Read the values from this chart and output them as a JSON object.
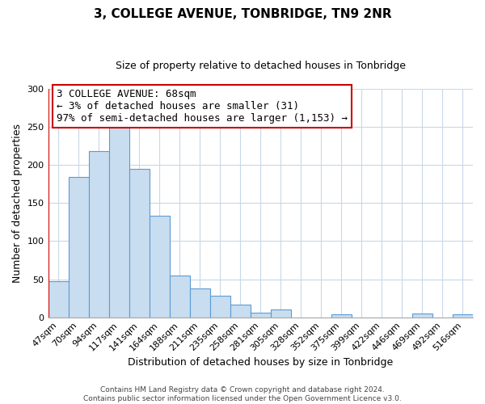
{
  "title": "3, COLLEGE AVENUE, TONBRIDGE, TN9 2NR",
  "subtitle": "Size of property relative to detached houses in Tonbridge",
  "xlabel": "Distribution of detached houses by size in Tonbridge",
  "ylabel": "Number of detached properties",
  "bar_labels": [
    "47sqm",
    "70sqm",
    "94sqm",
    "117sqm",
    "141sqm",
    "164sqm",
    "188sqm",
    "211sqm",
    "235sqm",
    "258sqm",
    "281sqm",
    "305sqm",
    "328sqm",
    "352sqm",
    "375sqm",
    "399sqm",
    "422sqm",
    "446sqm",
    "469sqm",
    "492sqm",
    "516sqm"
  ],
  "bar_heights": [
    47,
    184,
    218,
    250,
    195,
    133,
    55,
    38,
    28,
    17,
    6,
    10,
    0,
    0,
    4,
    0,
    0,
    0,
    5,
    0,
    4
  ],
  "bar_color": "#c8ddef",
  "bar_edge_color": "#5b9bd5",
  "highlight_line_color": "#cc0000",
  "ylim": [
    0,
    300
  ],
  "yticks": [
    0,
    50,
    100,
    150,
    200,
    250,
    300
  ],
  "annotation_line1": "3 COLLEGE AVENUE: 68sqm",
  "annotation_line2": "← 3% of detached houses are smaller (31)",
  "annotation_line3": "97% of semi-detached houses are larger (1,153) →",
  "annotation_box_color": "#ffffff",
  "annotation_box_edge_color": "#cc0000",
  "footer_line1": "Contains HM Land Registry data © Crown copyright and database right 2024.",
  "footer_line2": "Contains public sector information licensed under the Open Government Licence v3.0.",
  "background_color": "#ffffff",
  "grid_color": "#c8d8e8",
  "title_fontsize": 11,
  "subtitle_fontsize": 9,
  "ylabel_fontsize": 9,
  "xlabel_fontsize": 9,
  "tick_fontsize": 8,
  "annotation_fontsize": 9,
  "footer_fontsize": 6.5
}
